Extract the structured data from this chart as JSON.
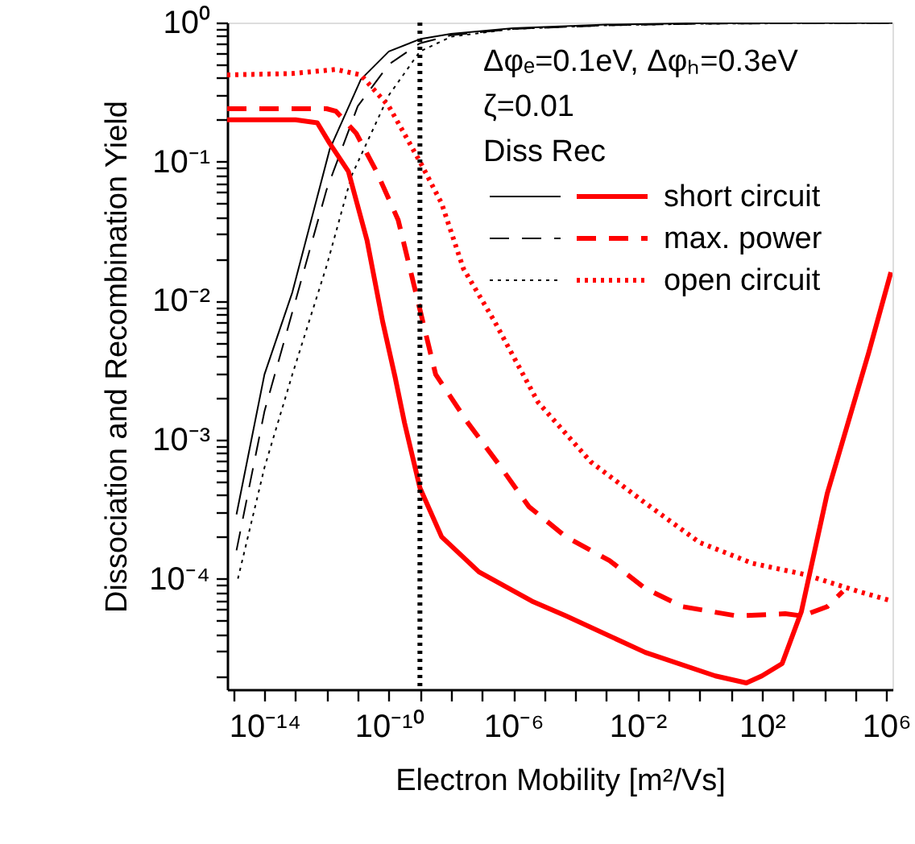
{
  "chart_data": {
    "type": "line",
    "xlabel": "Electron Mobility  [m²/Vs]",
    "ylabel": "Dissociation and Recombination Yield",
    "annotations": [
      "Δφₑ=0.1eV, Δφₕ=0.3eV",
      "ζ=0.01"
    ],
    "legend_title": "Diss Rec",
    "legend": "top right",
    "log": "xy",
    "grid": false,
    "xlim": [
      6.3e-16,
      1580000.0
    ],
    "ylim": [
      1.6e-05,
      1
    ],
    "xticks": [
      {
        "value": 1e-15,
        "label": null
      },
      {
        "value": 1e-14,
        "label": "10⁻¹⁴"
      },
      {
        "value": 1e-13,
        "label": null
      },
      {
        "value": 1e-12,
        "label": null
      },
      {
        "value": 1e-11,
        "label": null
      },
      {
        "value": 1e-10,
        "label": "10⁻¹⁰"
      },
      {
        "value": 1e-09,
        "label": null
      },
      {
        "value": 1e-08,
        "label": null
      },
      {
        "value": 1e-07,
        "label": null
      },
      {
        "value": 1e-06,
        "label": "10⁻⁶"
      },
      {
        "value": 1e-05,
        "label": null
      },
      {
        "value": 0.0001,
        "label": null
      },
      {
        "value": 0.001,
        "label": null
      },
      {
        "value": 0.01,
        "label": "10⁻²"
      },
      {
        "value": 0.1,
        "label": null
      },
      {
        "value": 1,
        "label": null
      },
      {
        "value": 10,
        "label": null
      },
      {
        "value": 100,
        "label": "10²"
      },
      {
        "value": 1000,
        "label": null
      },
      {
        "value": 10000.0,
        "label": null
      },
      {
        "value": 100000.0,
        "label": null
      },
      {
        "value": 1000000.0,
        "label": "10⁶"
      }
    ],
    "yticks": [
      {
        "value": 2e-05,
        "label": null
      },
      {
        "value": 3e-05,
        "label": null
      },
      {
        "value": 4e-05,
        "label": null
      },
      {
        "value": 5e-05,
        "label": null
      },
      {
        "value": 6e-05,
        "label": null
      },
      {
        "value": 7e-05,
        "label": null
      },
      {
        "value": 8e-05,
        "label": null
      },
      {
        "value": 9e-05,
        "label": null
      },
      {
        "value": 0.0001,
        "label": "10⁻⁴"
      },
      {
        "value": 0.0002,
        "label": null
      },
      {
        "value": 0.0003,
        "label": null
      },
      {
        "value": 0.0004,
        "label": null
      },
      {
        "value": 0.0005,
        "label": null
      },
      {
        "value": 0.0006,
        "label": null
      },
      {
        "value": 0.0007,
        "label": null
      },
      {
        "value": 0.0008,
        "label": null
      },
      {
        "value": 0.0009,
        "label": null
      },
      {
        "value": 0.001,
        "label": "10⁻³"
      },
      {
        "value": 0.002,
        "label": null
      },
      {
        "value": 0.003,
        "label": null
      },
      {
        "value": 0.004,
        "label": null
      },
      {
        "value": 0.005,
        "label": null
      },
      {
        "value": 0.006,
        "label": null
      },
      {
        "value": 0.007,
        "label": null
      },
      {
        "value": 0.008,
        "label": null
      },
      {
        "value": 0.009,
        "label": null
      },
      {
        "value": 0.01,
        "label": "10⁻²"
      },
      {
        "value": 0.02,
        "label": null
      },
      {
        "value": 0.03,
        "label": null
      },
      {
        "value": 0.04,
        "label": null
      },
      {
        "value": 0.05,
        "label": null
      },
      {
        "value": 0.06,
        "label": null
      },
      {
        "value": 0.07,
        "label": null
      },
      {
        "value": 0.08,
        "label": null
      },
      {
        "value": 0.09,
        "label": null
      },
      {
        "value": 0.1,
        "label": "10⁻¹"
      },
      {
        "value": 0.2,
        "label": null
      },
      {
        "value": 0.3,
        "label": null
      },
      {
        "value": 0.4,
        "label": null
      },
      {
        "value": 0.5,
        "label": null
      },
      {
        "value": 0.6,
        "label": null
      },
      {
        "value": 0.7,
        "label": null
      },
      {
        "value": 0.8,
        "label": null
      },
      {
        "value": 0.9,
        "label": null
      },
      {
        "value": 1,
        "label": "10⁰"
      }
    ],
    "ref_lines": [
      {
        "axis": "x",
        "value": 1e-09,
        "color": "#000000",
        "line_style": "dotted"
      }
    ],
    "series": [
      {
        "color": "#000000",
        "line_style": "solid",
        "x": [
          1.26e-15,
          1e-14,
          7.9e-14,
          1.26e-12,
          1.26e-11,
          1e-10,
          1e-09,
          1e-08,
          1e-06,
          0.001,
          1,
          1000,
          1580000.0
        ],
        "values": [
          0.00029,
          0.00295,
          0.0115,
          0.123,
          0.39,
          0.62,
          0.76,
          0.83,
          0.91,
          0.966,
          0.99,
          0.995,
          0.995
        ]
      },
      {
        "color": "#000000",
        "line_style": "dashed",
        "x": [
          1.26e-15,
          1e-14,
          1e-13,
          1e-12,
          1e-11,
          1e-10,
          1e-09,
          1e-08,
          1e-06,
          0.001,
          1,
          1580000.0
        ],
        "values": [
          0.00016,
          0.0016,
          0.01,
          0.063,
          0.25,
          0.5,
          0.71,
          0.81,
          0.9,
          0.955,
          0.98,
          0.995
        ]
      },
      {
        "color": "#000000",
        "line_style": "dotted",
        "x": [
          1.4e-15,
          1e-14,
          7.9e-14,
          1e-12,
          6.3e-12,
          1e-10,
          1e-09,
          1e-08,
          1e-06,
          0.001,
          1,
          1580000.0
        ],
        "values": [
          0.0001,
          0.00063,
          0.00295,
          0.0178,
          0.079,
          0.3,
          0.62,
          0.79,
          0.9,
          0.955,
          0.98,
          0.995
        ]
      },
      {
        "name": "short circuit",
        "color": "#ff0000",
        "line_style": "solid",
        "x": [
          6.3e-16,
          1e-13,
          5e-13,
          1.26e-12,
          5e-12,
          2e-11,
          6.3e-11,
          1.6e-10,
          3.2e-10,
          1e-09,
          5e-09,
          7.9e-08,
          4e-06,
          5e-05,
          0.0178,
          3.16,
          31.6,
          100,
          447,
          1860,
          12600,
          270000.0,
          1410000.0
        ],
        "values": [
          0.2,
          0.2,
          0.19,
          0.135,
          0.085,
          0.027,
          0.0071,
          0.0028,
          0.00132,
          0.00045,
          0.0002,
          0.000112,
          6.9e-05,
          5.4e-05,
          2.95e-05,
          2e-05,
          1.78e-05,
          2e-05,
          2.45e-05,
          5.8e-05,
          0.00041,
          0.0042,
          0.016
        ]
      },
      {
        "name": "max. power",
        "color": "#ff0000",
        "line_style": "dashed",
        "x": [
          6.3e-16,
          1e-12,
          2e-12,
          8.9e-12,
          4e-11,
          2e-10,
          6.3e-10,
          3.2e-09,
          3.5e-08,
          3.2e-07,
          3.2e-06,
          5e-05,
          0.00126,
          0.0178,
          0.28,
          15.8,
          562,
          2000,
          12600,
          40000.0
        ],
        "values": [
          0.24,
          0.24,
          0.23,
          0.16,
          0.085,
          0.038,
          0.0132,
          0.00295,
          0.00132,
          0.00068,
          0.00033,
          0.0002,
          0.000135,
          8.5e-05,
          6.3e-05,
          5.4e-05,
          5.6e-05,
          5.4e-05,
          6.3e-05,
          8.1e-05
        ]
      },
      {
        "name": "open circuit",
        "color": "#ff0000",
        "line_style": "dotted",
        "x": [
          6.3e-16,
          7.9e-14,
          2e-12,
          1.26e-11,
          1e-10,
          1e-09,
          5e-09,
          2.5e-08,
          2.5e-07,
          6.3e-06,
          0.00032,
          0.0178,
          1,
          50,
          2500,
          126000.0,
          1580000.0
        ],
        "values": [
          0.42,
          0.43,
          0.46,
          0.42,
          0.25,
          0.1,
          0.05,
          0.017,
          0.0071,
          0.00186,
          0.00069,
          0.00035,
          0.000182,
          0.000129,
          0.000107,
          8.1e-05,
          6.9e-05
        ]
      }
    ]
  }
}
